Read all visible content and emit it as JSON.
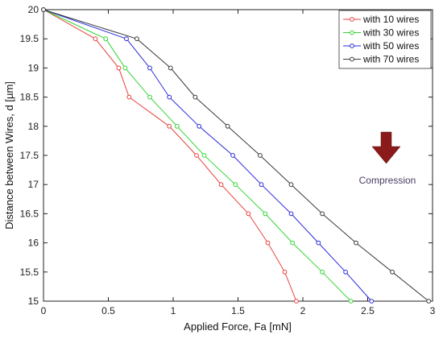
{
  "chart_data": {
    "type": "line",
    "xlabel": "Applied Force, Fa [mN]",
    "ylabel": "Distance between Wires, d [µm]",
    "xlim": [
      0,
      3
    ],
    "ylim": [
      15,
      20
    ],
    "xticks": [
      0,
      0.5,
      1,
      1.5,
      2,
      2.5,
      3
    ],
    "xtick_labels": [
      "0",
      "0.5",
      "1",
      "1.5",
      "2",
      "2.5",
      "3"
    ],
    "yticks": [
      15,
      15.5,
      16,
      16.5,
      17,
      17.5,
      18,
      18.5,
      19,
      19.5,
      20
    ],
    "ytick_labels": [
      "15",
      "15.5",
      "16",
      "16.5",
      "17",
      "17.5",
      "18",
      "18.5",
      "19",
      "19.5",
      "20"
    ],
    "grid": false,
    "legend_position": "top-right",
    "series": [
      {
        "name": "with 10 wires",
        "color": "#e8413c",
        "marker": "circle",
        "points": [
          [
            0,
            20
          ],
          [
            0.4,
            19.5
          ],
          [
            0.58,
            19.0
          ],
          [
            0.66,
            18.5
          ],
          [
            0.97,
            18.0
          ],
          [
            1.18,
            17.5
          ],
          [
            1.37,
            17.0
          ],
          [
            1.58,
            16.5
          ],
          [
            1.73,
            16.0
          ],
          [
            1.86,
            15.5
          ],
          [
            1.95,
            15.0
          ]
        ]
      },
      {
        "name": "with 30 wires",
        "color": "#33d433",
        "marker": "circle",
        "points": [
          [
            0,
            20
          ],
          [
            0.48,
            19.5
          ],
          [
            0.63,
            19.0
          ],
          [
            0.82,
            18.5
          ],
          [
            1.03,
            18.0
          ],
          [
            1.24,
            17.5
          ],
          [
            1.48,
            17.0
          ],
          [
            1.71,
            16.5
          ],
          [
            1.92,
            16.0
          ],
          [
            2.15,
            15.5
          ],
          [
            2.37,
            15.0
          ]
        ]
      },
      {
        "name": "with 50 wires",
        "color": "#2a2adc",
        "marker": "circle",
        "points": [
          [
            0,
            20
          ],
          [
            0.64,
            19.5
          ],
          [
            0.82,
            19.0
          ],
          [
            0.97,
            18.5
          ],
          [
            1.2,
            18.0
          ],
          [
            1.46,
            17.5
          ],
          [
            1.68,
            17.0
          ],
          [
            1.91,
            16.5
          ],
          [
            2.12,
            16.0
          ],
          [
            2.33,
            15.5
          ],
          [
            2.53,
            15.0
          ]
        ]
      },
      {
        "name": "with 70 wires",
        "color": "#3a3a3a",
        "marker": "circle",
        "points": [
          [
            0,
            20
          ],
          [
            0.72,
            19.5
          ],
          [
            0.98,
            19.0
          ],
          [
            1.17,
            18.5
          ],
          [
            1.42,
            18.0
          ],
          [
            1.67,
            17.5
          ],
          [
            1.91,
            17.0
          ],
          [
            2.15,
            16.5
          ],
          [
            2.41,
            16.0
          ],
          [
            2.69,
            15.5
          ],
          [
            2.97,
            15.0
          ]
        ]
      }
    ],
    "annotations": [
      {
        "text": "Compression",
        "arrow_direction": "down",
        "arrow_color": "#8b1a1a"
      }
    ]
  }
}
